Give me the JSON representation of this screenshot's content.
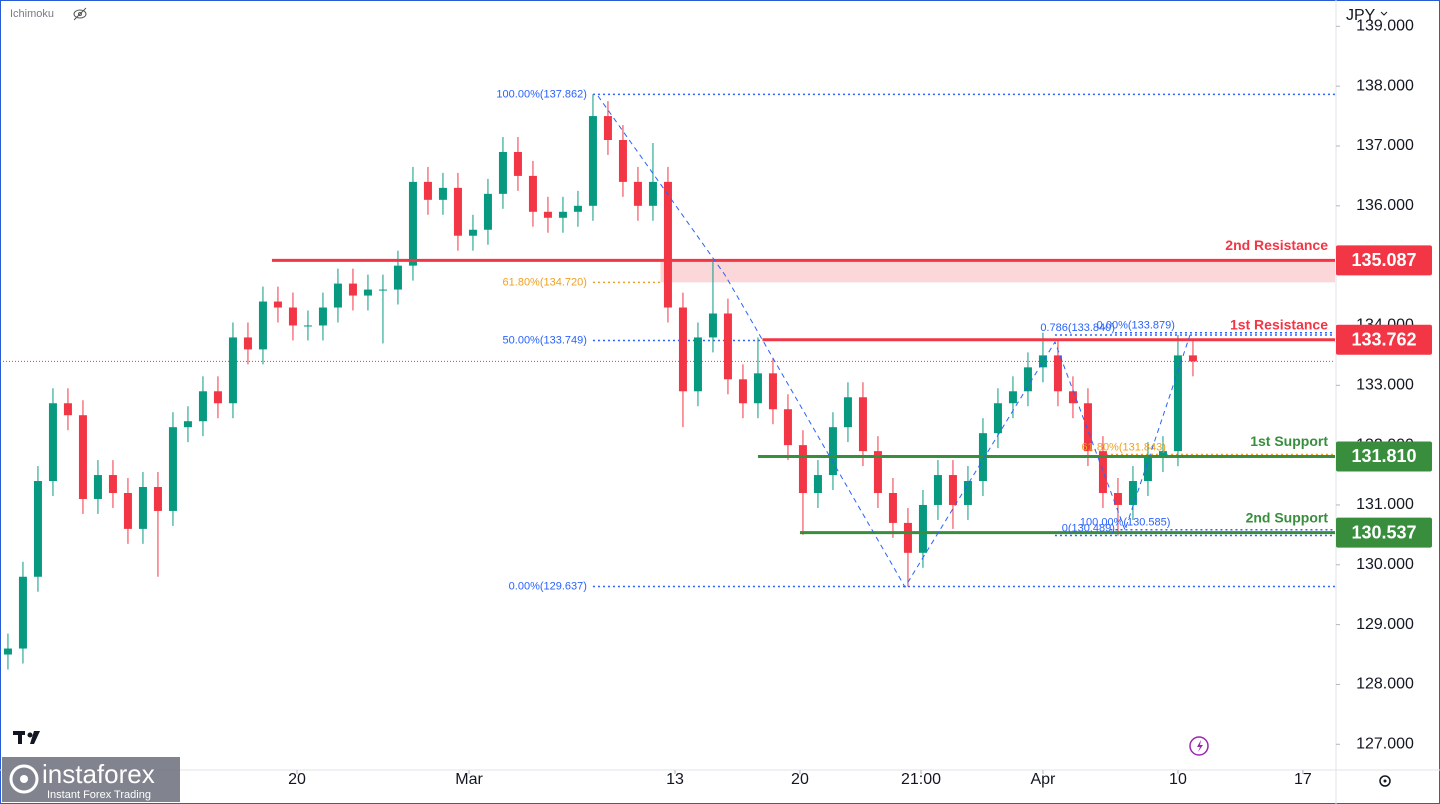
{
  "chart_data": {
    "type": "candlestick",
    "indicator": "Ichimoku",
    "currency": "JPY",
    "watermark": {
      "brand": "instaforex",
      "tagline": "Instant Forex Trading"
    },
    "up_color": "#089981",
    "down_color": "#f23645",
    "xlim": [
      -0.53,
      88.47
    ],
    "xticks": [
      {
        "value": 19.27,
        "label": "20"
      },
      {
        "value": 30.74,
        "label": "Mar"
      },
      {
        "value": 44.47,
        "label": "13"
      },
      {
        "value": 52.8,
        "label": "20"
      },
      {
        "value": 60.87,
        "label": "21:00"
      },
      {
        "value": 69.0,
        "label": "Apr"
      },
      {
        "value": 78.0,
        "label": "10"
      },
      {
        "value": 86.33,
        "label": "17"
      }
    ],
    "ylim": [
      126.57,
      139.44
    ],
    "yticks": [
      {
        "value": 127,
        "label": "127.000"
      },
      {
        "value": 128,
        "label": "128.000"
      },
      {
        "value": 129,
        "label": "129.000"
      },
      {
        "value": 130,
        "label": "130.000"
      },
      {
        "value": 131,
        "label": "131.000"
      },
      {
        "value": 132,
        "label": "132.000"
      },
      {
        "value": 133,
        "label": "133.000"
      },
      {
        "value": 134,
        "label": "134.000"
      },
      {
        "value": 135,
        "label": "135.000"
      },
      {
        "value": 136,
        "label": "136.000"
      },
      {
        "value": 137,
        "label": "137.000"
      },
      {
        "value": 138,
        "label": "138.000"
      },
      {
        "value": 139,
        "label": "139.000"
      }
    ],
    "candles": {
      "open": [
        128.5,
        128.6,
        129.8,
        131.4,
        132.7,
        132.5,
        131.1,
        131.5,
        131.2,
        130.6,
        131.3,
        130.9,
        132.3,
        132.4,
        132.9,
        132.7,
        133.8,
        133.6,
        134.4,
        134.3,
        134.0,
        134.0,
        134.3,
        134.7,
        134.5,
        134.6,
        134.6,
        135.0,
        136.4,
        136.1,
        136.3,
        135.5,
        135.6,
        136.2,
        136.9,
        136.5,
        135.9,
        135.8,
        135.9,
        136.0,
        137.5,
        137.1,
        136.4,
        136.0,
        136.4,
        134.3,
        132.9,
        133.8,
        134.2,
        133.1,
        132.7,
        133.2,
        132.6,
        132.0,
        131.2,
        131.5,
        132.3,
        132.8,
        131.9,
        131.2,
        130.7,
        130.2,
        131.0,
        131.5,
        131.0,
        131.4,
        132.2,
        132.7,
        132.9,
        133.3,
        133.5,
        132.9,
        132.7,
        131.9,
        131.2,
        131.0,
        131.4,
        131.8,
        131.9,
        133.5
      ],
      "high": [
        128.85,
        130.05,
        131.65,
        132.95,
        132.95,
        132.75,
        131.75,
        131.75,
        131.45,
        131.55,
        131.55,
        132.55,
        132.65,
        133.15,
        133.15,
        134.05,
        134.05,
        134.65,
        134.65,
        134.55,
        134.25,
        134.55,
        134.95,
        134.95,
        134.85,
        134.85,
        135.25,
        136.65,
        136.65,
        136.55,
        136.55,
        135.85,
        136.45,
        137.15,
        137.15,
        136.75,
        136.15,
        136.15,
        136.25,
        137.862,
        137.75,
        137.35,
        136.65,
        137.05,
        136.65,
        134.55,
        134.05,
        135.1,
        134.45,
        133.35,
        133.8,
        133.45,
        132.85,
        132.25,
        131.75,
        132.55,
        133.05,
        133.05,
        132.15,
        131.45,
        130.95,
        131.25,
        131.75,
        131.75,
        131.65,
        132.45,
        132.95,
        133.15,
        133.55,
        133.879,
        133.75,
        133.15,
        132.95,
        132.15,
        131.45,
        131.65,
        132.05,
        132.15,
        133.84,
        133.75
      ],
      "low": [
        128.25,
        128.35,
        129.55,
        131.15,
        132.25,
        130.85,
        130.85,
        130.95,
        130.35,
        130.35,
        129.8,
        130.65,
        132.05,
        132.15,
        132.45,
        132.45,
        133.35,
        133.35,
        134.05,
        133.75,
        133.75,
        133.75,
        134.05,
        134.25,
        134.25,
        133.7,
        134.35,
        134.75,
        135.85,
        135.85,
        135.25,
        135.25,
        135.35,
        135.95,
        136.25,
        135.65,
        135.55,
        135.55,
        135.65,
        135.75,
        136.85,
        136.15,
        135.75,
        135.75,
        134.05,
        132.3,
        132.65,
        133.55,
        132.85,
        132.45,
        132.45,
        132.35,
        131.75,
        130.5,
        130.95,
        131.25,
        132.05,
        131.65,
        130.95,
        130.45,
        129.637,
        129.95,
        130.75,
        130.6,
        130.75,
        131.15,
        131.95,
        132.45,
        132.65,
        133.05,
        132.65,
        132.45,
        131.65,
        130.95,
        130.489,
        130.75,
        131.15,
        131.55,
        131.65,
        133.15
      ],
      "close": [
        128.6,
        129.8,
        131.4,
        132.7,
        132.5,
        131.1,
        131.5,
        131.2,
        130.6,
        131.3,
        130.9,
        132.3,
        132.4,
        132.9,
        132.7,
        133.8,
        133.6,
        134.4,
        134.3,
        134.0,
        134.0,
        134.3,
        134.7,
        134.5,
        134.6,
        134.6,
        135.0,
        136.4,
        136.1,
        136.3,
        135.5,
        135.6,
        136.2,
        136.9,
        136.5,
        135.9,
        135.8,
        135.9,
        136.0,
        137.5,
        137.1,
        136.4,
        136.0,
        136.4,
        134.3,
        132.9,
        133.8,
        134.2,
        133.1,
        132.7,
        133.2,
        132.6,
        132.0,
        131.2,
        131.5,
        132.3,
        132.8,
        131.9,
        131.2,
        130.7,
        130.2,
        131.0,
        131.5,
        131.0,
        131.4,
        132.2,
        132.7,
        132.9,
        133.3,
        133.5,
        132.9,
        132.7,
        131.9,
        131.2,
        131.0,
        131.4,
        131.8,
        131.9,
        133.5,
        133.4
      ]
    },
    "last_price": 133.4,
    "zone": {
      "from": 134.72,
      "to": 135.087,
      "x_start": 43.5,
      "color": "#f23645"
    },
    "levels": [
      {
        "name": "2nd Resistance",
        "value": 135.087,
        "value_label": "135.087",
        "color": "#f23645",
        "x_start": 17.6
      },
      {
        "name": "1st Resistance",
        "value": 133.762,
        "value_label": "133.762",
        "color": "#f23645",
        "x_start": 50.3
      },
      {
        "name": "1st Support",
        "value": 131.81,
        "value_label": "131.810",
        "color": "#388e3c",
        "x_start": 50.0
      },
      {
        "name": "2nd Support",
        "value": 130.537,
        "value_label": "130.537",
        "color": "#388e3c",
        "x_start": 52.8
      }
    ],
    "fibs": [
      {
        "label": "100.00%(137.862)",
        "value": 137.862,
        "x_start": 39.0,
        "x_end": 88.47,
        "color": "#2962ff"
      },
      {
        "label": "61.80%(134.720)",
        "value": 134.72,
        "x_start": 39.0,
        "x_end": 43.5,
        "color": "#f0a020"
      },
      {
        "label": "50.00%(133.749)",
        "value": 133.749,
        "x_start": 39.0,
        "x_end": 50.3,
        "color": "#2962ff"
      },
      {
        "label": "0.00%(129.637)",
        "value": 129.637,
        "x_start": 39.0,
        "x_end": 88.47,
        "color": "#2962ff"
      },
      {
        "label": "0.786(133.840)",
        "value": 133.84,
        "x_start": 69.8,
        "x_end": 88.47,
        "color": "#2962ff"
      },
      {
        "label": "0.00%(133.879)",
        "value": 133.879,
        "x_start": 73.8,
        "x_end": 88.47,
        "color": "#2962ff"
      },
      {
        "label": "61.80%(131.843)",
        "value": 131.843,
        "x_start": 73.2,
        "x_end": 88.47,
        "color": "#f0a020"
      },
      {
        "label": "0(130.489)",
        "value": 130.489,
        "x_start": 69.8,
        "x_end": 88.47,
        "color": "#2962ff"
      },
      {
        "label": "100.00%(130.585)",
        "value": 130.585,
        "x_start": 73.5,
        "x_end": 88.47,
        "color": "#2962ff"
      }
    ]
  }
}
